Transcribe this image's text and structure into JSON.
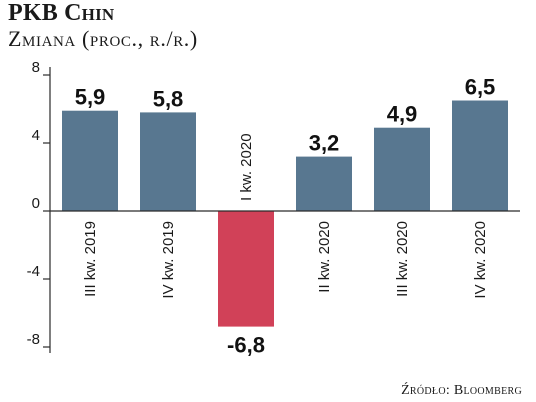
{
  "header": {
    "title": "PKB Chin",
    "subtitle": "Zmiana (proc., r./r.)"
  },
  "footer": {
    "source": "Źródło: Bloomberg"
  },
  "colors": {
    "positive": "#587790",
    "negative": "#d14158",
    "axis": "#2a2a2a",
    "grid": "#d9d9d9"
  },
  "chart_data": {
    "type": "bar",
    "title": "PKB Chin",
    "subtitle": "Zmiana (proc., r./r.)",
    "xlabel": "",
    "ylabel": "",
    "categories": [
      "III kw. 2019",
      "IV kw. 2019",
      "I kw. 2020",
      "II kw. 2020",
      "III kw. 2020",
      "IV kw. 2020"
    ],
    "values": [
      5.9,
      5.8,
      -6.8,
      3.2,
      4.9,
      6.5
    ],
    "value_labels": [
      "5,9",
      "5,8",
      "-6,8",
      "3,2",
      "4,9",
      "6,5"
    ],
    "yticks": [
      8,
      4,
      0,
      -4,
      -8
    ],
    "ytick_labels": [
      "8",
      "4",
      "0",
      "-4",
      "-8"
    ],
    "ylim": [
      -8,
      8
    ],
    "grid": false,
    "legend": "none"
  }
}
